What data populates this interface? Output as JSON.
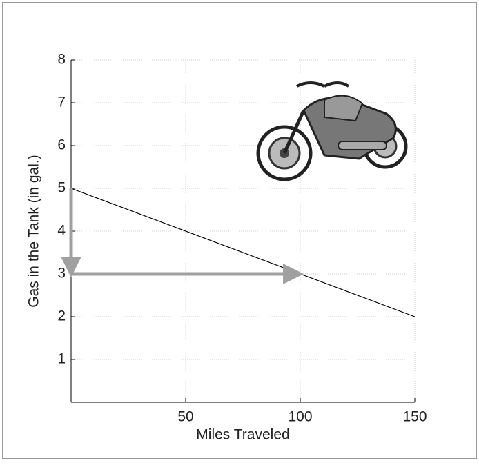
{
  "chart_data": {
    "type": "line",
    "x_label": "Miles Traveled",
    "y_label": "Gas in the Tank  (in gal.)",
    "series": [
      {
        "x": [
          0,
          150
        ],
        "values": [
          5,
          2
        ],
        "color": "#000000"
      }
    ],
    "guide_arrows": [
      {
        "x": [
          0,
          0
        ],
        "y": [
          5,
          3
        ]
      },
      {
        "x": [
          0,
          100
        ],
        "y": [
          3,
          3
        ]
      }
    ],
    "arrow_color": "#a0a0a0",
    "xlim": [
      0,
      150
    ],
    "xticks": [
      50,
      100,
      150
    ],
    "ylim": [
      0,
      8
    ],
    "yticks": [
      1,
      2,
      3,
      4,
      5,
      6,
      7,
      8
    ],
    "grid": true
  }
}
